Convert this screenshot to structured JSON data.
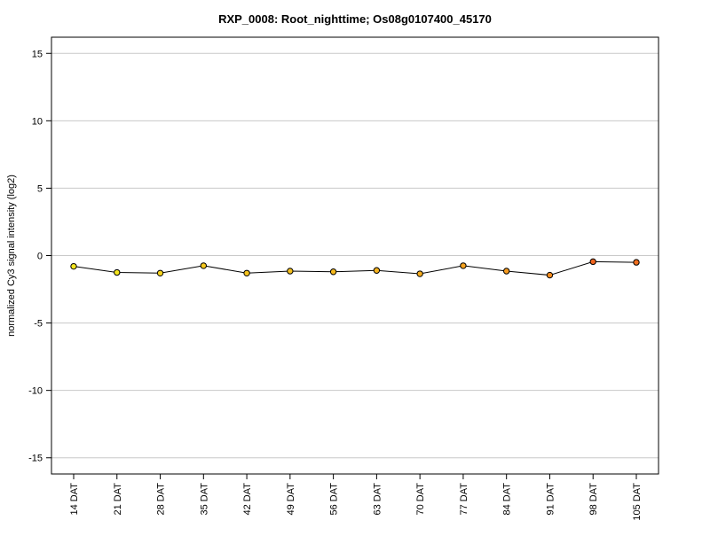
{
  "chart_data": {
    "type": "line",
    "title": "RXP_0008: Root_nighttime; Os08g0107400_45170",
    "xlabel": "",
    "ylabel": "normalized Cy3 signal intensity (log2)",
    "categories": [
      "14 DAT",
      "21 DAT",
      "28 DAT",
      "35 DAT",
      "42 DAT",
      "49 DAT",
      "56 DAT",
      "63 DAT",
      "70 DAT",
      "77 DAT",
      "84 DAT",
      "91 DAT",
      "98 DAT",
      "105 DAT"
    ],
    "values": [
      -0.8,
      -1.25,
      -1.3,
      -0.75,
      -1.3,
      -1.15,
      -1.2,
      -1.1,
      -1.35,
      -0.75,
      -1.15,
      -1.45,
      -0.45,
      -0.5
    ],
    "point_colors": [
      "#f5e61e",
      "#f5e61e",
      "#f5d21e",
      "#f5c81e",
      "#f5c31e",
      "#f5c01e",
      "#f5b91e",
      "#f5b21e",
      "#f5ac1e",
      "#f5a21e",
      "#f59a1e",
      "#f58c1e",
      "#f0641e",
      "#f06e1e"
    ],
    "y_ticks": [
      -15,
      -10,
      -5,
      0,
      5,
      10,
      15
    ],
    "y_tick_labels": [
      "-15",
      "-10",
      "-5",
      "0",
      "5",
      "10",
      "15"
    ],
    "ylim": [
      -16.2,
      16.2
    ],
    "grid": "horizontal",
    "colors": {
      "line": "#000000",
      "grid": "#c8c8c8",
      "marker_edge": "#000000"
    }
  }
}
